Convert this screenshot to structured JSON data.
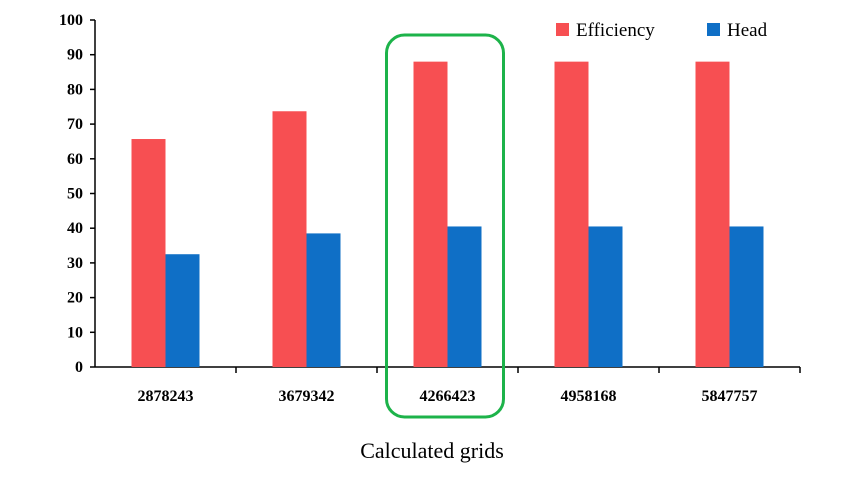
{
  "chart_data": {
    "type": "bar",
    "categories": [
      "2878243",
      "3679342",
      "4266423",
      "4958168",
      "5847757"
    ],
    "series": [
      {
        "name": "Efficiency",
        "color": "#f74f52",
        "values": [
          65.7,
          73.7,
          88.0,
          88.0,
          88.0
        ]
      },
      {
        "name": "Head",
        "color": "#0f6fc6",
        "values": [
          32.5,
          38.5,
          40.5,
          40.5,
          40.5
        ]
      }
    ],
    "xlabel": "Calculated grids",
    "ylabel": "",
    "ylim": [
      0,
      100
    ],
    "yticks": [
      "0",
      "10",
      "20",
      "30",
      "40",
      "50",
      "60",
      "70",
      "80",
      "90",
      "100"
    ],
    "legend_position": "top-right",
    "highlight": {
      "category": "4266423",
      "color": "#1db34a",
      "shape": "rounded-rectangle"
    }
  }
}
